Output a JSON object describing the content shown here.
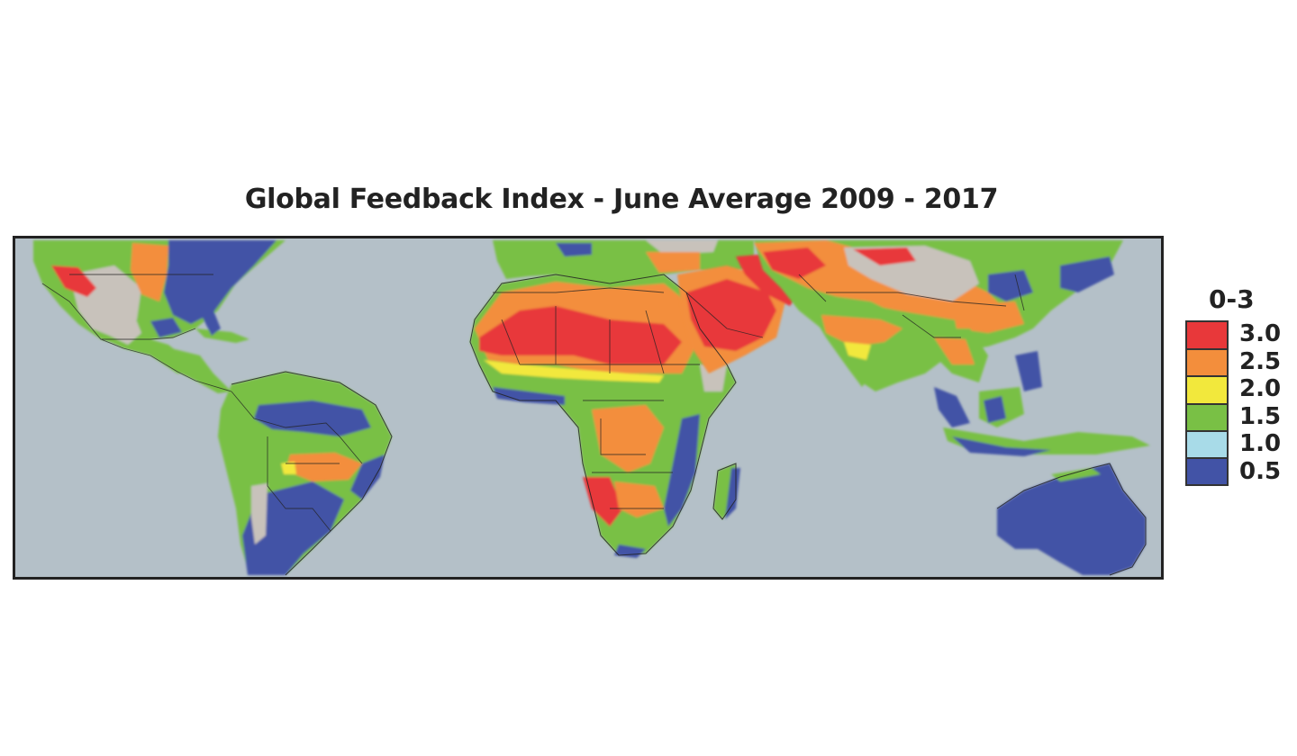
{
  "title": "Global Feedback Index - June Average 2009 - 2017",
  "legend": {
    "title": "0-3",
    "items": [
      {
        "label": "3.0",
        "color": "#e8383a"
      },
      {
        "label": "2.5",
        "color": "#f38e3c"
      },
      {
        "label": "2.0",
        "color": "#f2e83c"
      },
      {
        "label": "1.5",
        "color": "#79c045"
      },
      {
        "label": "1.0",
        "color": "#a8dbe8"
      },
      {
        "label": "0.5",
        "color": "#4253a6"
      }
    ]
  },
  "map": {
    "ocean_color": "#b4c0c8",
    "nodata_color": "#c8c2bb",
    "border_color": "#222222"
  }
}
